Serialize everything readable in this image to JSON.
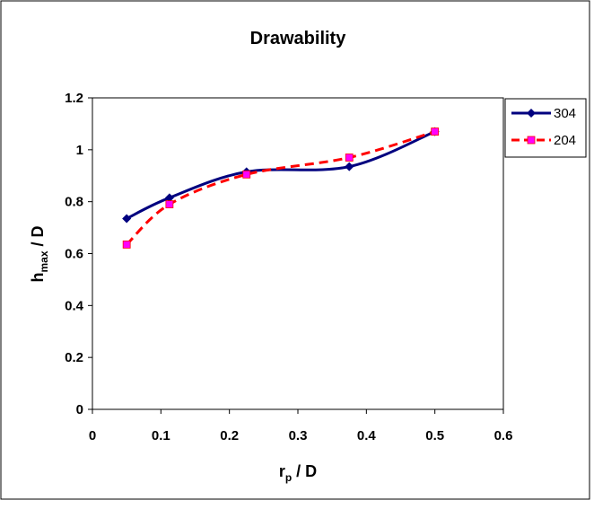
{
  "chart_data": {
    "type": "line",
    "title": "Drawability",
    "xlabel": {
      "main": "r",
      "sub": "p",
      "rest": " / D"
    },
    "ylabel": {
      "main": "h",
      "sub": "max",
      "rest": " / D"
    },
    "xlim": [
      0,
      0.6
    ],
    "ylim": [
      0,
      1.2
    ],
    "xticks": [
      0,
      0.1,
      0.2,
      0.3,
      0.4,
      0.5,
      0.6
    ],
    "yticks": [
      0,
      0.2,
      0.4,
      0.6,
      0.8,
      1,
      1.2
    ],
    "xtick_labels": [
      "0",
      "0.1",
      "0.2",
      "0.3",
      "0.4",
      "0.5",
      "0.6"
    ],
    "ytick_labels": [
      "0",
      "0.2",
      "0.4",
      "0.6",
      "0.8",
      "1",
      "1.2"
    ],
    "grid": false,
    "legend_position": "right",
    "series": [
      {
        "name": "304",
        "color": "#00007f",
        "line_style": "solid",
        "marker": "diamond",
        "x": [
          0.05,
          0.1125,
          0.225,
          0.375,
          0.5
        ],
        "y": [
          0.735,
          0.815,
          0.915,
          0.935,
          1.07
        ]
      },
      {
        "name": "204",
        "color": "#ff0000",
        "marker_color": "#ff00ff",
        "line_style": "dashed",
        "marker": "square",
        "x": [
          0.05,
          0.1125,
          0.225,
          0.375,
          0.5
        ],
        "y": [
          0.635,
          0.79,
          0.905,
          0.97,
          1.07
        ]
      }
    ]
  }
}
